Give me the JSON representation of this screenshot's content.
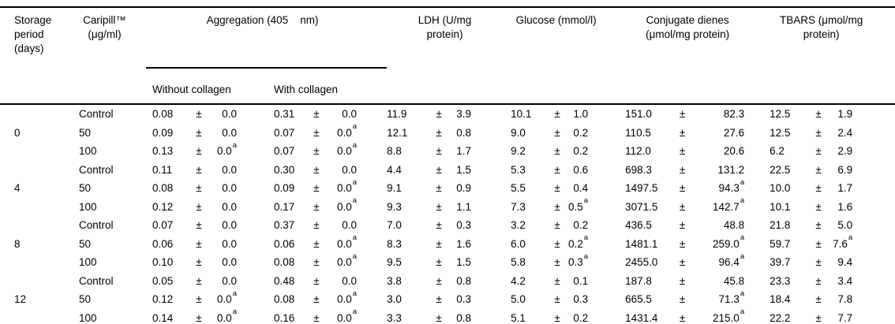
{
  "table": {
    "pm": "±",
    "headers": {
      "storage": "Storage period (days)",
      "caripill": "Caripill™ (μg/ml)",
      "aggregation": "Aggregation (405    nm)",
      "without_collagen": "Without collagen",
      "with_collagen": "With collagen",
      "ldh": "LDH (U/mg protein)",
      "glucose": "Glucose (mmol/l)",
      "conjugate_dienes": "Conjugate dienes (μmol/mg protein)",
      "tbars": "TBARS (μmol/mg protein)"
    },
    "rows": [
      {
        "period": "",
        "dose": "Control",
        "wc": {
          "v": "0.08",
          "e": "0.0",
          "s": ""
        },
        "w": {
          "v": "0.31",
          "e": "0.0",
          "s": ""
        },
        "ldh": {
          "v": "11.9",
          "e": "3.9",
          "s": ""
        },
        "glu": {
          "v": "10.1",
          "e": "1.0",
          "s": ""
        },
        "cd": {
          "v": "151.0",
          "e": "82.3",
          "s": ""
        },
        "tb": {
          "v": "12.5",
          "e": "1.9",
          "s": ""
        }
      },
      {
        "period": "0",
        "dose": "50",
        "wc": {
          "v": "0.09",
          "e": "0.0",
          "s": ""
        },
        "w": {
          "v": "0.07",
          "e": "0.0",
          "s": "a"
        },
        "ldh": {
          "v": "12.1",
          "e": "0.8",
          "s": ""
        },
        "glu": {
          "v": "9.0",
          "e": "0.2",
          "s": ""
        },
        "cd": {
          "v": "110.5",
          "e": "27.6",
          "s": ""
        },
        "tb": {
          "v": "12.5",
          "e": "2.4",
          "s": ""
        }
      },
      {
        "period": "",
        "dose": "100",
        "wc": {
          "v": "0.13",
          "e": "0.0",
          "s": "a"
        },
        "w": {
          "v": "0.07",
          "e": "0.0",
          "s": "a"
        },
        "ldh": {
          "v": "8.8",
          "e": "1.7",
          "s": ""
        },
        "glu": {
          "v": "9.2",
          "e": "0.2",
          "s": ""
        },
        "cd": {
          "v": "112.0",
          "e": "20.6",
          "s": ""
        },
        "tb": {
          "v": "6.2",
          "e": "2.9",
          "s": ""
        }
      },
      {
        "period": "",
        "dose": "Control",
        "wc": {
          "v": "0.11",
          "e": "0.0",
          "s": ""
        },
        "w": {
          "v": "0.30",
          "e": "0.0",
          "s": ""
        },
        "ldh": {
          "v": "4.4",
          "e": "1.5",
          "s": ""
        },
        "glu": {
          "v": "5.3",
          "e": "0.6",
          "s": ""
        },
        "cd": {
          "v": "698.3",
          "e": "131.2",
          "s": ""
        },
        "tb": {
          "v": "22.5",
          "e": "6.9",
          "s": ""
        }
      },
      {
        "period": "4",
        "dose": "50",
        "wc": {
          "v": "0.08",
          "e": "0.0",
          "s": ""
        },
        "w": {
          "v": "0.09",
          "e": "0.0",
          "s": "a"
        },
        "ldh": {
          "v": "9.1",
          "e": "0.9",
          "s": ""
        },
        "glu": {
          "v": "5.5",
          "e": "0.4",
          "s": ""
        },
        "cd": {
          "v": "1497.5",
          "e": "94.3",
          "s": "a"
        },
        "tb": {
          "v": "10.0",
          "e": "1.7",
          "s": ""
        }
      },
      {
        "period": "",
        "dose": "100",
        "wc": {
          "v": "0.12",
          "e": "0.0",
          "s": ""
        },
        "w": {
          "v": "0.17",
          "e": "0.0",
          "s": "a"
        },
        "ldh": {
          "v": "9.3",
          "e": "1.1",
          "s": ""
        },
        "glu": {
          "v": "7.3",
          "e": "0.5",
          "s": "a"
        },
        "cd": {
          "v": "3071.5",
          "e": "142.7",
          "s": "a"
        },
        "tb": {
          "v": "10.1",
          "e": "1.6",
          "s": ""
        }
      },
      {
        "period": "",
        "dose": "Control",
        "wc": {
          "v": "0.07",
          "e": "0.0",
          "s": ""
        },
        "w": {
          "v": "0.37",
          "e": "0.0",
          "s": ""
        },
        "ldh": {
          "v": "7.0",
          "e": "0.3",
          "s": ""
        },
        "glu": {
          "v": "3.2",
          "e": "0.2",
          "s": ""
        },
        "cd": {
          "v": "436.5",
          "e": "48.8",
          "s": ""
        },
        "tb": {
          "v": "21.8",
          "e": "5.0",
          "s": ""
        }
      },
      {
        "period": "8",
        "dose": "50",
        "wc": {
          "v": "0.06",
          "e": "0.0",
          "s": ""
        },
        "w": {
          "v": "0.06",
          "e": "0.0",
          "s": "a"
        },
        "ldh": {
          "v": "8.3",
          "e": "1.6",
          "s": ""
        },
        "glu": {
          "v": "6.0",
          "e": "0.2",
          "s": "a"
        },
        "cd": {
          "v": "1481.1",
          "e": "259.0",
          "s": "a"
        },
        "tb": {
          "v": "59.7",
          "e": "7.6",
          "s": "a"
        }
      },
      {
        "period": "",
        "dose": "100",
        "wc": {
          "v": "0.10",
          "e": "0.0",
          "s": ""
        },
        "w": {
          "v": "0.08",
          "e": "0.0",
          "s": "a"
        },
        "ldh": {
          "v": "9.5",
          "e": "1.5",
          "s": ""
        },
        "glu": {
          "v": "5.8",
          "e": "0.3",
          "s": "a"
        },
        "cd": {
          "v": "2455.0",
          "e": "96.4",
          "s": "a"
        },
        "tb": {
          "v": "39.7",
          "e": "9.4",
          "s": ""
        }
      },
      {
        "period": "",
        "dose": "Control",
        "wc": {
          "v": "0.05",
          "e": "0.0",
          "s": ""
        },
        "w": {
          "v": "0.48",
          "e": "0.0",
          "s": ""
        },
        "ldh": {
          "v": "3.8",
          "e": "0.8",
          "s": ""
        },
        "glu": {
          "v": "4.2",
          "e": "0.1",
          "s": ""
        },
        "cd": {
          "v": "187.8",
          "e": "45.8",
          "s": ""
        },
        "tb": {
          "v": "23.3",
          "e": "3.4",
          "s": ""
        }
      },
      {
        "period": "12",
        "dose": "50",
        "wc": {
          "v": "0.12",
          "e": "0.0",
          "s": "a"
        },
        "w": {
          "v": "0.08",
          "e": "0.0",
          "s": "a"
        },
        "ldh": {
          "v": "3.0",
          "e": "0.3",
          "s": ""
        },
        "glu": {
          "v": "5.0",
          "e": "0.3",
          "s": ""
        },
        "cd": {
          "v": "665.5",
          "e": "71.3",
          "s": "a"
        },
        "tb": {
          "v": "18.4",
          "e": "7.8",
          "s": ""
        }
      },
      {
        "period": "",
        "dose": "100",
        "wc": {
          "v": "0.14",
          "e": "0.0",
          "s": "a"
        },
        "w": {
          "v": "0.16",
          "e": "0.0",
          "s": "a"
        },
        "ldh": {
          "v": "3.3",
          "e": "0.8",
          "s": ""
        },
        "glu": {
          "v": "5.1",
          "e": "0.2",
          "s": ""
        },
        "cd": {
          "v": "1431.4",
          "e": "215.0",
          "s": "a"
        },
        "tb": {
          "v": "22.2",
          "e": "7.7",
          "s": ""
        }
      }
    ]
  }
}
